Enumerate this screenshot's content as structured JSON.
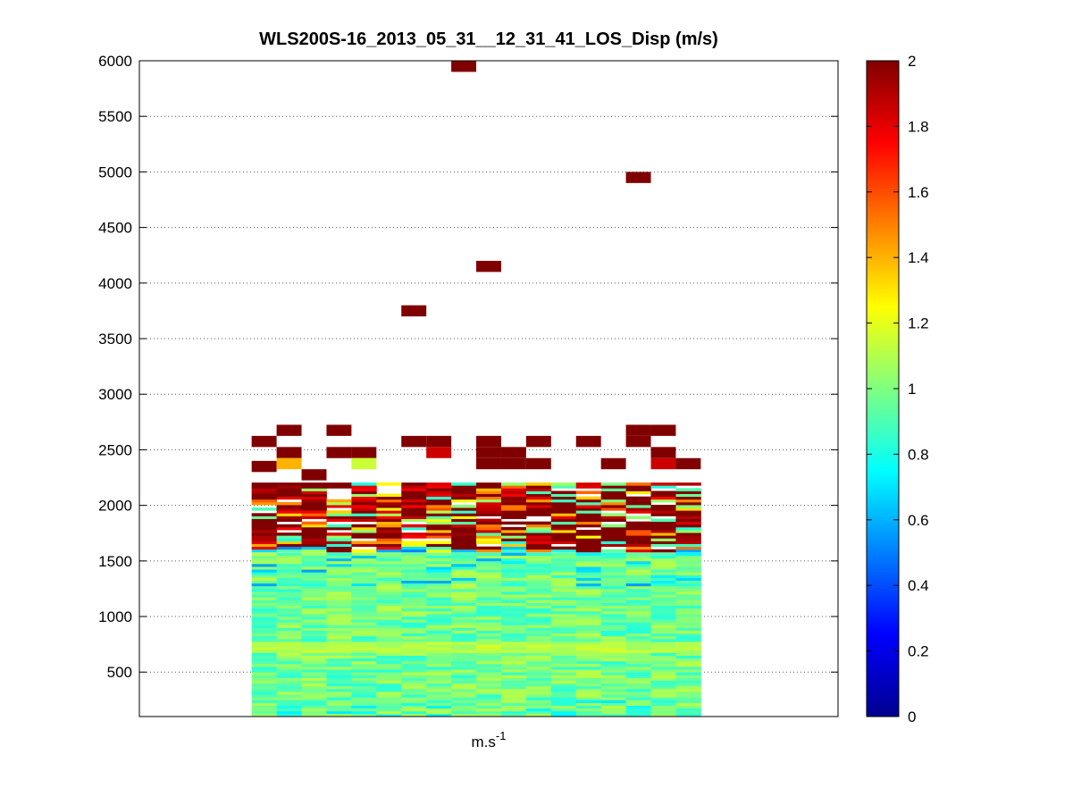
{
  "chart_data": {
    "type": "heatmap",
    "title": "WLS200S-16_2013_05_31__12_31_41_LOS_Disp (m/s)",
    "xlabel": {
      "base": "m.s",
      "superscript": "-1"
    },
    "ylabel": "",
    "ylim": [
      100,
      6000
    ],
    "y_ticks": [
      500,
      1000,
      1500,
      2000,
      2500,
      3000,
      3500,
      4000,
      4500,
      5000,
      5500,
      6000
    ],
    "grid": "horizontal dotted",
    "colormap": "jet",
    "color_range": [
      0,
      2
    ],
    "colorbar_ticks": [
      "0",
      "0.2",
      "0.4",
      "0.6",
      "0.8",
      "1",
      "1.2",
      "1.4",
      "1.6",
      "1.8",
      "2"
    ],
    "column_count": 18,
    "column_x_range": [
      5,
      22
    ],
    "x_range": [
      0,
      28
    ],
    "row_spacing": 25,
    "low_level_top": 1580,
    "transition_top": 2200,
    "high_cells": [
      {
        "col": 0,
        "y": 2575,
        "value": 2.0
      },
      {
        "col": 0,
        "y": 2350,
        "value": 2.0
      },
      {
        "col": 1,
        "y": 2675,
        "value": 2.0
      },
      {
        "col": 1,
        "y": 2475,
        "value": 2.0
      },
      {
        "col": 1,
        "y": 2375,
        "value": 1.4
      },
      {
        "col": 2,
        "y": 2275,
        "value": 2.0
      },
      {
        "col": 3,
        "y": 2675,
        "value": 2.0
      },
      {
        "col": 3,
        "y": 2475,
        "value": 2.0
      },
      {
        "col": 4,
        "y": 2475,
        "value": 2.0
      },
      {
        "col": 4,
        "y": 2375,
        "value": 1.15
      },
      {
        "col": 6,
        "y": 2575,
        "value": 2.0
      },
      {
        "col": 6,
        "y": 3750,
        "value": 2.0
      },
      {
        "col": 7,
        "y": 2575,
        "value": 2.0
      },
      {
        "col": 7,
        "y": 2475,
        "value": 1.85
      },
      {
        "col": 8,
        "y": 5950,
        "value": 2.0
      },
      {
        "col": 9,
        "y": 2575,
        "value": 2.0
      },
      {
        "col": 9,
        "y": 2475,
        "value": 2.0
      },
      {
        "col": 9,
        "y": 2375,
        "value": 2.0
      },
      {
        "col": 9,
        "y": 4150,
        "value": 2.0
      },
      {
        "col": 10,
        "y": 2475,
        "value": 2.0
      },
      {
        "col": 10,
        "y": 2375,
        "value": 2.0
      },
      {
        "col": 11,
        "y": 2575,
        "value": 2.0
      },
      {
        "col": 11,
        "y": 2375,
        "value": 2.0
      },
      {
        "col": 13,
        "y": 2575,
        "value": 2.0
      },
      {
        "col": 14,
        "y": 2375,
        "value": 2.0
      },
      {
        "col": 15,
        "y": 2675,
        "value": 2.0
      },
      {
        "col": 15,
        "y": 2575,
        "value": 2.0
      },
      {
        "col": 15,
        "y": 4950,
        "value": 2.0
      },
      {
        "col": 16,
        "y": 2675,
        "value": 2.0
      },
      {
        "col": 16,
        "y": 2475,
        "value": 2.0
      },
      {
        "col": 16,
        "y": 2375,
        "value": 1.85
      },
      {
        "col": 17,
        "y": 2375,
        "value": 2.0
      }
    ]
  }
}
